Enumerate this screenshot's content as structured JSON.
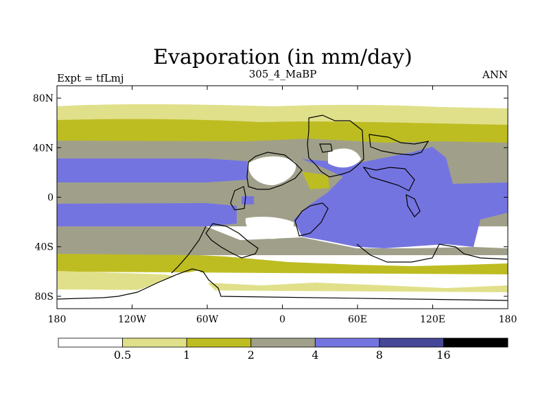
{
  "chart_data": {
    "type": "heatmap",
    "title": "Evaporation (in mm/day)",
    "subtitle_left": "Expt = tfLmj",
    "subtitle_center": "305_4_MaBP",
    "subtitle_right": "ANN",
    "xlim": [
      -180,
      180
    ],
    "ylim": [
      -90,
      90
    ],
    "x_ticks": [
      {
        "value": -180,
        "label": "180"
      },
      {
        "value": -120,
        "label": "120W"
      },
      {
        "value": -60,
        "label": "60W"
      },
      {
        "value": 0,
        "label": "0"
      },
      {
        "value": 60,
        "label": "60E"
      },
      {
        "value": 120,
        "label": "120E"
      },
      {
        "value": 180,
        "label": "180"
      }
    ],
    "y_ticks": [
      {
        "value": 80,
        "label": "80N"
      },
      {
        "value": 40,
        "label": "40N"
      },
      {
        "value": 0,
        "label": "0"
      },
      {
        "value": -40,
        "label": "40S"
      },
      {
        "value": -80,
        "label": "80S"
      }
    ],
    "colorbar": {
      "levels": [
        "0.5",
        "1",
        "2",
        "4",
        "8",
        "16"
      ],
      "colors": [
        "#ffffff",
        "#e0e08a",
        "#bdbd22",
        "#a0a08a",
        "#7474e0",
        "#474797",
        "#000000"
      ]
    },
    "colors": {
      "white": "#ffffff",
      "light_yellow": "#e0e08a",
      "olive": "#bdbd22",
      "gray": "#a0a08a",
      "blue": "#7474e0",
      "dark_blue": "#474797",
      "black": "#000000"
    }
  }
}
